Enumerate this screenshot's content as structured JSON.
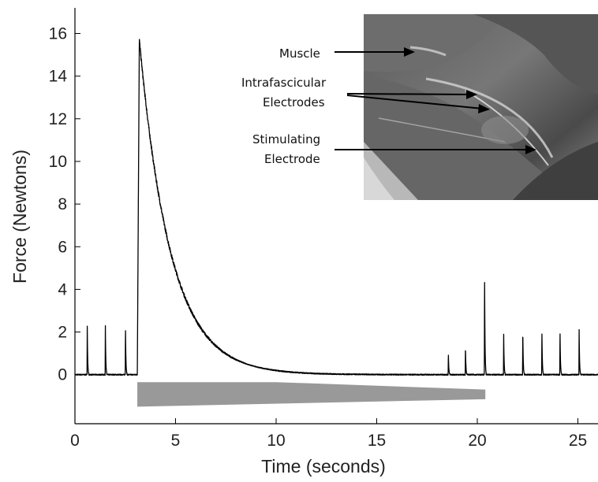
{
  "chart_data": {
    "type": "line",
    "title": "",
    "xlabel": "Time (seconds)",
    "ylabel": "Force (Newtons)",
    "xlim": [
      0,
      26
    ],
    "ylim": [
      -2.3,
      17.2
    ],
    "xticks": [
      0,
      5,
      10,
      15,
      20,
      25
    ],
    "yticks": [
      0,
      2,
      4,
      6,
      8,
      10,
      12,
      14,
      16
    ],
    "grid": false,
    "legend": "none",
    "series": [
      {
        "color": "#000000",
        "twitches": [
          {
            "t": 0.6,
            "peak": 2.3
          },
          {
            "t": 1.5,
            "peak": 2.3
          },
          {
            "t": 2.5,
            "peak": 2.3
          },
          {
            "t": 18.55,
            "peak": 1.0
          },
          {
            "t": 19.4,
            "peak": 1.35
          },
          {
            "t": 20.35,
            "peak": 4.8
          },
          {
            "t": 21.3,
            "peak": 1.9
          },
          {
            "t": 22.25,
            "peak": 2.1
          },
          {
            "t": 23.2,
            "peak": 2.1
          },
          {
            "t": 24.1,
            "peak": 2.1
          },
          {
            "t": 25.05,
            "peak": 2.1
          }
        ],
        "tetanus": {
          "onset": 3.1,
          "peak_time": 3.2,
          "peak": 15.7,
          "decay_tau": 1.55,
          "baseline_after": 0.0
        }
      }
    ],
    "stimulus_bar": {
      "start": 3.1,
      "end": 20.4,
      "taper_start": 10.0,
      "y_top": -0.35,
      "y_bottom": -1.5,
      "y_end_top": -0.7,
      "y_end_bottom": -1.15,
      "color": "#999999"
    }
  },
  "inset": {
    "labels": [
      "Muscle",
      "Intrafascicular",
      "Electrodes",
      "Stimulating",
      "Electrode"
    ]
  }
}
